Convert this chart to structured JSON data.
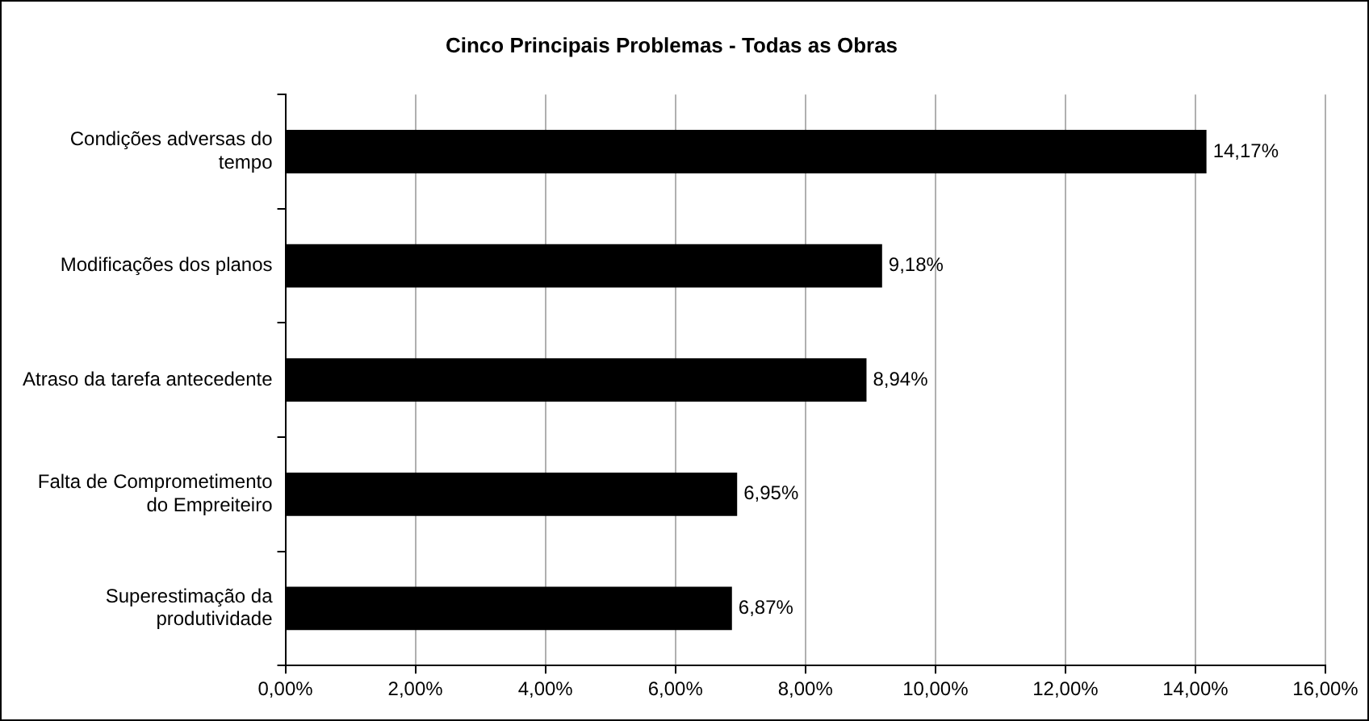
{
  "chart_data": {
    "type": "bar",
    "orientation": "horizontal",
    "title": "Cinco Principais Problemas - Todas as Obras",
    "categories": [
      "Condições adversas do\ntempo",
      "Modificações dos planos",
      "Atraso da tarefa antecedente",
      "Falta de Comprometimento\ndo Empreiteiro",
      "Superestimação da\nprodutividade"
    ],
    "values": [
      14.17,
      9.18,
      8.94,
      6.95,
      6.87
    ],
    "value_labels": [
      "14,17%",
      "9,18%",
      "8,94%",
      "6,95%",
      "6,87%"
    ],
    "color": "#000000",
    "xlim": [
      0,
      16
    ],
    "xticks": [
      {
        "value": 0,
        "label": "0,00%"
      },
      {
        "value": 2,
        "label": "2,00%"
      },
      {
        "value": 4,
        "label": "4,00%"
      },
      {
        "value": 6,
        "label": "6,00%"
      },
      {
        "value": 8,
        "label": "8,00%"
      },
      {
        "value": 10,
        "label": "10,00%"
      },
      {
        "value": 12,
        "label": "12,00%"
      },
      {
        "value": 14,
        "label": "14,00%"
      },
      {
        "value": 16,
        "label": "16,00%"
      }
    ],
    "grid": "x"
  }
}
